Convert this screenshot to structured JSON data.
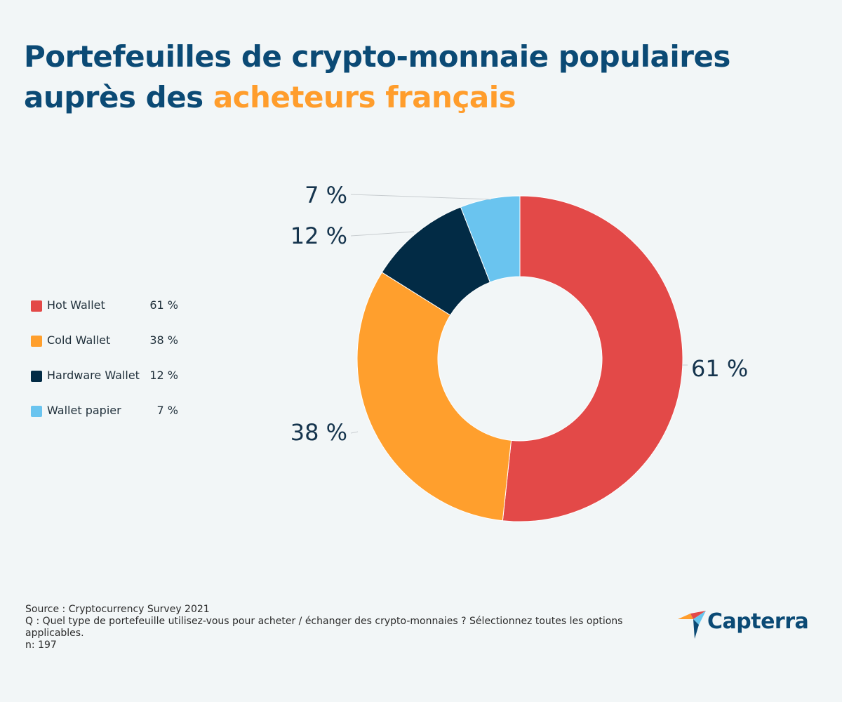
{
  "header": {
    "title_main": "Portefeuilles de crypto-monnaie populaires auprès des",
    "title_accent": "acheteurs français"
  },
  "chart_data": {
    "type": "pie",
    "variant": "donut",
    "categories": [
      "Hot Wallet",
      "Cold Wallet",
      "Hardware Wallet",
      "Wallet papier"
    ],
    "values": [
      61,
      38,
      12,
      7
    ],
    "value_labels": [
      "61 %",
      "38 %",
      "12 %",
      "7 %"
    ],
    "colors": [
      "#e34948",
      "#ff9f2d",
      "#022b45",
      "#6ac4ef"
    ],
    "legend_position": "left"
  },
  "legend": {
    "items": [
      {
        "label": "Hot Wallet",
        "value": "61 %",
        "color": "#e34948"
      },
      {
        "label": "Cold Wallet",
        "value": "38 %",
        "color": "#ff9f2d"
      },
      {
        "label": "Hardware Wallet",
        "value": "12 %",
        "color": "#022b45"
      },
      {
        "label": "Wallet papier",
        "value": "7 %",
        "color": "#6ac4ef"
      }
    ]
  },
  "footer": {
    "source": "Source : Cryptocurrency Survey 2021",
    "question": "Q : Quel type de portefeuille utilisez-vous pour acheter / échanger des crypto-monnaies ? Sélectionnez toutes les options applicables.",
    "sample": "n: 197"
  },
  "brand": {
    "name": "Capterra",
    "logo_icon": "capterra-arrow-icon",
    "colors": {
      "title": "#0b4a75",
      "accent": "#ff9d2c",
      "background": "#f2f6f7"
    }
  }
}
